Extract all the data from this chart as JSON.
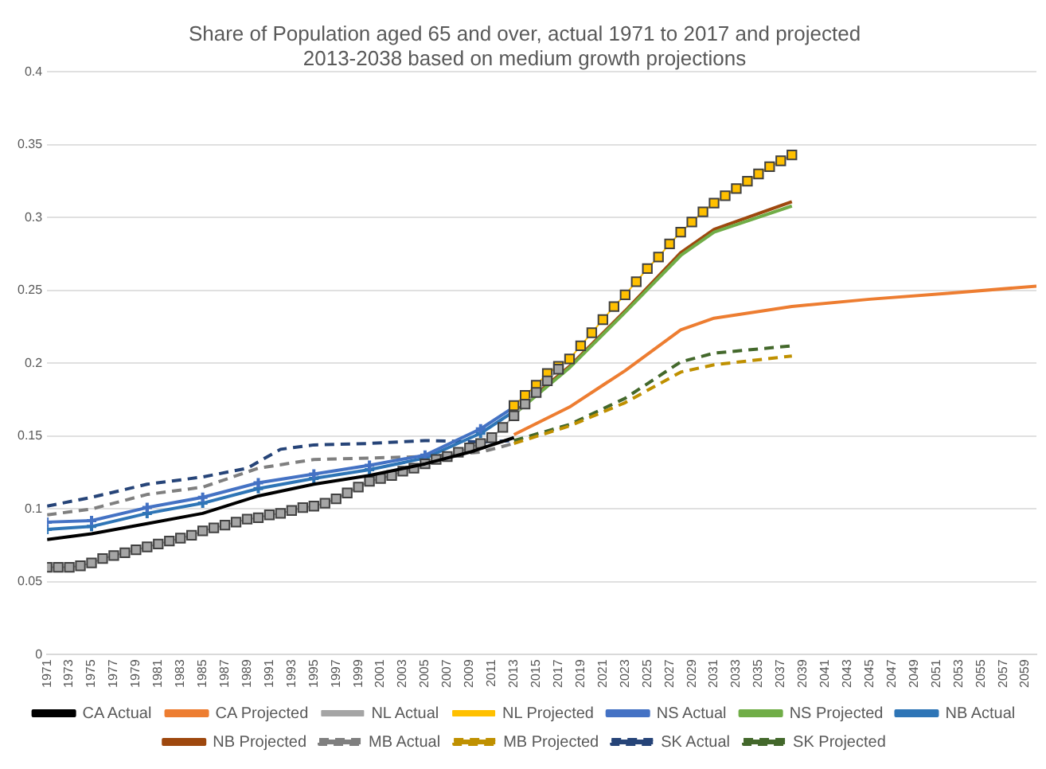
{
  "chart_data": {
    "type": "line",
    "title": "Share of Population aged 65 and over, actual 1971 to 2017 and projected 2013-2038 based on medium growth projections",
    "xlim": [
      1971,
      2060
    ],
    "xticks": [
      1971,
      1973,
      1975,
      1977,
      1979,
      1981,
      1983,
      1985,
      1987,
      1989,
      1991,
      1993,
      1995,
      1997,
      1999,
      2001,
      2003,
      2005,
      2007,
      2009,
      2011,
      2013,
      2015,
      2017,
      2019,
      2021,
      2023,
      2025,
      2027,
      2029,
      2031,
      2033,
      2035,
      2037,
      2039,
      2041,
      2043,
      2045,
      2047,
      2049,
      2051,
      2053,
      2055,
      2057,
      2059
    ],
    "ylim": [
      0,
      0.4
    ],
    "yticks": [
      0,
      0.05,
      0.1,
      0.15,
      0.2,
      0.25,
      0.3,
      0.35,
      0.4
    ],
    "grid": "y",
    "legend": "bottom",
    "series": [
      {
        "name": "CA Actual",
        "color": "#000000",
        "marker": "none",
        "line_style": "solid",
        "x": [
          1971,
          1975,
          1980,
          1985,
          1990,
          1995,
          2000,
          2005,
          2009,
          2013
        ],
        "values": [
          0.079,
          0.083,
          0.09,
          0.097,
          0.109,
          0.117,
          0.123,
          0.131,
          0.139,
          0.149
        ]
      },
      {
        "name": "CA Projected",
        "color": "#ed7d31",
        "marker": "none",
        "line_style": "solid",
        "x": [
          2013,
          2018,
          2023,
          2028,
          2031,
          2038,
          2045,
          2052,
          2060
        ],
        "values": [
          0.151,
          0.17,
          0.195,
          0.223,
          0.231,
          0.239,
          0.244,
          0.248,
          0.253
        ]
      },
      {
        "name": "NL Actual",
        "color": "#a5a5a5",
        "marker": "square",
        "line_style": "solid",
        "x": [
          1971,
          1972,
          1973,
          1974,
          1975,
          1976,
          1977,
          1978,
          1979,
          1980,
          1981,
          1982,
          1983,
          1984,
          1985,
          1986,
          1987,
          1988,
          1989,
          1990,
          1991,
          1992,
          1993,
          1994,
          1995,
          1996,
          1997,
          1998,
          1999,
          2000,
          2001,
          2002,
          2003,
          2004,
          2005,
          2006,
          2007,
          2008,
          2009,
          2010,
          2011,
          2012,
          2013,
          2014,
          2015,
          2016,
          2017
        ],
        "values": [
          0.06,
          0.06,
          0.06,
          0.061,
          0.063,
          0.066,
          0.068,
          0.07,
          0.072,
          0.074,
          0.076,
          0.078,
          0.08,
          0.082,
          0.085,
          0.087,
          0.089,
          0.091,
          0.093,
          0.094,
          0.096,
          0.097,
          0.099,
          0.101,
          0.102,
          0.104,
          0.107,
          0.111,
          0.115,
          0.119,
          0.121,
          0.123,
          0.126,
          0.128,
          0.131,
          0.134,
          0.136,
          0.139,
          0.142,
          0.145,
          0.149,
          0.156,
          0.164,
          0.172,
          0.18,
          0.188,
          0.196
        ]
      },
      {
        "name": "NL Projected",
        "color": "#ffc000",
        "marker": "square",
        "line_style": "solid",
        "x": [
          2013,
          2014,
          2015,
          2016,
          2017,
          2018,
          2019,
          2020,
          2021,
          2022,
          2023,
          2024,
          2025,
          2026,
          2027,
          2028,
          2029,
          2030,
          2031,
          2032,
          2033,
          2034,
          2035,
          2036,
          2037,
          2038
        ],
        "values": [
          0.171,
          0.178,
          0.185,
          0.193,
          0.198,
          0.203,
          0.212,
          0.221,
          0.23,
          0.239,
          0.247,
          0.256,
          0.265,
          0.273,
          0.282,
          0.29,
          0.297,
          0.304,
          0.31,
          0.315,
          0.32,
          0.325,
          0.33,
          0.335,
          0.339,
          0.343
        ]
      },
      {
        "name": "NS Actual",
        "color": "#4472c4",
        "marker": "cross",
        "line_style": "solid",
        "x": [
          1971,
          1975,
          1980,
          1985,
          1990,
          1995,
          2000,
          2005,
          2010,
          2013
        ],
        "values": [
          0.091,
          0.092,
          0.101,
          0.108,
          0.118,
          0.124,
          0.13,
          0.137,
          0.155,
          0.17
        ]
      },
      {
        "name": "NS Projected",
        "color": "#70ad47",
        "marker": "none",
        "line_style": "solid",
        "x": [
          2013,
          2018,
          2023,
          2028,
          2031,
          2038
        ],
        "values": [
          0.165,
          0.197,
          0.235,
          0.274,
          0.29,
          0.308
        ]
      },
      {
        "name": "NB Actual",
        "color": "#2e75b6",
        "marker": "cross",
        "line_style": "solid",
        "x": [
          1971,
          1975,
          1980,
          1985,
          1990,
          1995,
          2000,
          2005,
          2010,
          2013
        ],
        "values": [
          0.086,
          0.088,
          0.097,
          0.104,
          0.114,
          0.121,
          0.127,
          0.135,
          0.152,
          0.167
        ]
      },
      {
        "name": "NB Projected",
        "color": "#9e480e",
        "marker": "none",
        "line_style": "solid",
        "x": [
          2013,
          2018,
          2023,
          2028,
          2031,
          2038
        ],
        "values": [
          0.166,
          0.198,
          0.236,
          0.276,
          0.292,
          0.311
        ]
      },
      {
        "name": "MB Actual",
        "color": "#7f7f7f",
        "marker": "none",
        "line_style": "dashed",
        "x": [
          1971,
          1975,
          1980,
          1985,
          1990,
          1995,
          2000,
          2005,
          2010,
          2013
        ],
        "values": [
          0.096,
          0.1,
          0.11,
          0.115,
          0.128,
          0.134,
          0.135,
          0.136,
          0.139,
          0.145
        ]
      },
      {
        "name": "MB Projected",
        "color": "#bf9000",
        "marker": "none",
        "line_style": "dashed",
        "x": [
          2013,
          2018,
          2023,
          2028,
          2031,
          2038
        ],
        "values": [
          0.145,
          0.157,
          0.173,
          0.194,
          0.199,
          0.205
        ]
      },
      {
        "name": "SK Actual",
        "color": "#264478",
        "marker": "none",
        "line_style": "dashed",
        "x": [
          1971,
          1975,
          1980,
          1985,
          1989,
          1992,
          1995,
          2000,
          2005,
          2010,
          2013
        ],
        "values": [
          0.102,
          0.108,
          0.117,
          0.122,
          0.128,
          0.141,
          0.144,
          0.145,
          0.147,
          0.146,
          0.147
        ]
      },
      {
        "name": "SK Projected",
        "color": "#43682b",
        "marker": "none",
        "line_style": "dashed",
        "x": [
          2013,
          2018,
          2023,
          2028,
          2031,
          2038
        ],
        "values": [
          0.147,
          0.158,
          0.176,
          0.201,
          0.207,
          0.212
        ]
      }
    ]
  }
}
